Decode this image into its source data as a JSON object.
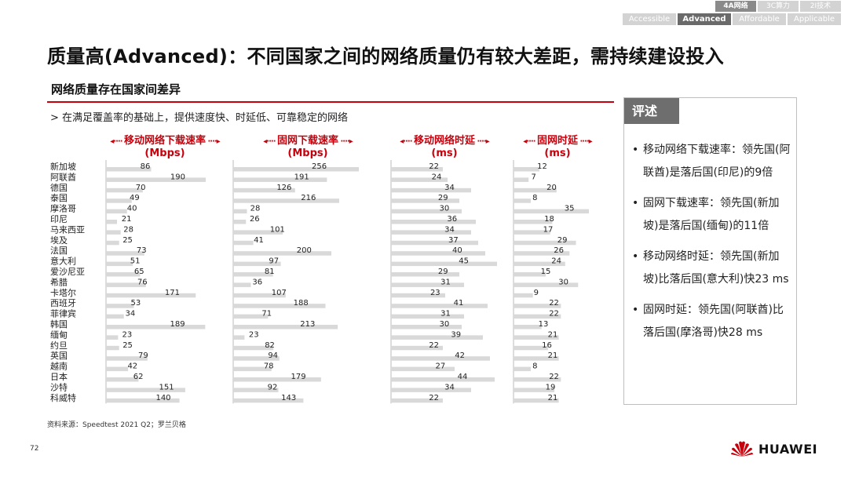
{
  "tabs_row1": [
    "4A网络",
    "3C算力",
    "2I技术"
  ],
  "tabs_row1_active": 0,
  "tabs_row2": [
    "Accessible",
    "Advanced",
    "Affordable",
    "Applicable"
  ],
  "tabs_row2_active": 1,
  "title": "质量高(Advanced)：不同国家之间的网络质量仍有较大差距，需持续建设投入",
  "section_title": "网络质量存在国家间差异",
  "bullet": "> 在满足覆盖率的基础上，提供速度快、时延低、可靠稳定的网络",
  "comment": {
    "title": "评述",
    "items": [
      "移动网络下载速率：领先国(阿联酋)是落后国(印尼)的9倍",
      "固网下载速率：领先国(新加坡)是落后国(缅甸)的11倍",
      "移动网络时延：领先国(新加坡)比落后国(意大利)快23 ms",
      "固网时延：领先国(阿联酋)比落后国(摩洛哥)快28 ms"
    ]
  },
  "source": "资料来源：Speedtest 2021 Q2；罗兰贝格",
  "page_number": "72",
  "brand": "HUAWEI",
  "colors": {
    "accent": "#c7000b",
    "bar": "#d9d9d9"
  },
  "chart_data": {
    "type": "bar",
    "orientation": "horizontal",
    "categories": [
      "新加坡",
      "阿联酋",
      "德国",
      "泰国",
      "摩洛哥",
      "印尼",
      "马来西亚",
      "埃及",
      "法国",
      "意大利",
      "爱沙尼亚",
      "希腊",
      "卡塔尔",
      "西班牙",
      "菲律宾",
      "韩国",
      "缅甸",
      "约旦",
      "英国",
      "越南",
      "日本",
      "沙特",
      "科威特"
    ],
    "series": [
      {
        "name": "移动网络下载速率",
        "unit": "(Mbps)",
        "values": [
          86,
          190,
          70,
          49,
          40,
          21,
          28,
          25,
          73,
          51,
          65,
          76,
          171,
          53,
          34,
          189,
          23,
          25,
          79,
          42,
          62,
          151,
          140
        ]
      },
      {
        "name": "固网下载速率",
        "unit": "(Mbps)",
        "values": [
          256,
          191,
          126,
          216,
          28,
          26,
          101,
          41,
          200,
          97,
          81,
          36,
          107,
          188,
          71,
          213,
          23,
          82,
          94,
          78,
          179,
          92,
          143
        ]
      },
      {
        "name": "移动网络时延",
        "unit": "(ms)",
        "values": [
          22,
          24,
          34,
          29,
          30,
          36,
          34,
          37,
          40,
          45,
          29,
          31,
          23,
          41,
          31,
          30,
          39,
          22,
          42,
          27,
          44,
          34,
          22
        ]
      },
      {
        "name": "固网时延",
        "unit": "(ms)",
        "values": [
          12,
          7,
          20,
          8,
          35,
          18,
          17,
          29,
          26,
          24,
          15,
          30,
          9,
          22,
          22,
          13,
          21,
          16,
          21,
          8,
          22,
          19,
          21
        ]
      }
    ]
  }
}
